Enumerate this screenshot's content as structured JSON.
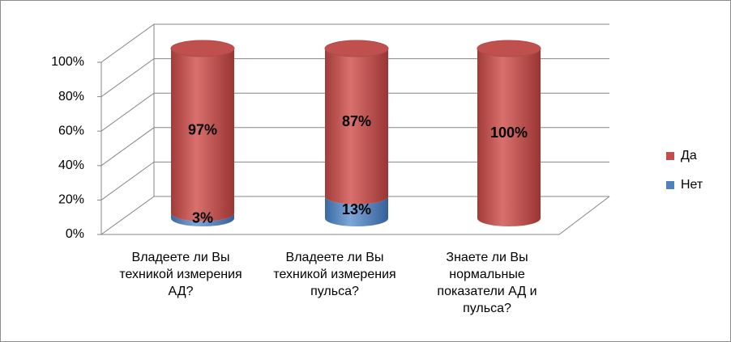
{
  "chart_data": {
    "type": "bar",
    "stacked": true,
    "categories": [
      "Владеете ли Вы техникой измерения АД?",
      "Владеете ли Вы техникой измерения пульса?",
      "Знаете ли Вы нормальные показатели АД и пульса?"
    ],
    "series": [
      {
        "name": "Нет",
        "color": "#4f81bd",
        "values": [
          3,
          13,
          0
        ],
        "value_labels": [
          "3%",
          "13%",
          null
        ]
      },
      {
        "name": "Да",
        "color": "#c0504d",
        "values": [
          97,
          87,
          100
        ],
        "value_labels": [
          "97%",
          "87%",
          "100%"
        ]
      }
    ],
    "ylim": [
      0,
      100
    ],
    "yticks": [
      {
        "value": 0,
        "label": "0%"
      },
      {
        "value": 20,
        "label": "20%"
      },
      {
        "value": 40,
        "label": "40%"
      },
      {
        "value": 60,
        "label": "60%"
      },
      {
        "value": 80,
        "label": "80%"
      },
      {
        "value": 100,
        "label": "100%"
      }
    ],
    "grid": true,
    "legend": "right"
  }
}
